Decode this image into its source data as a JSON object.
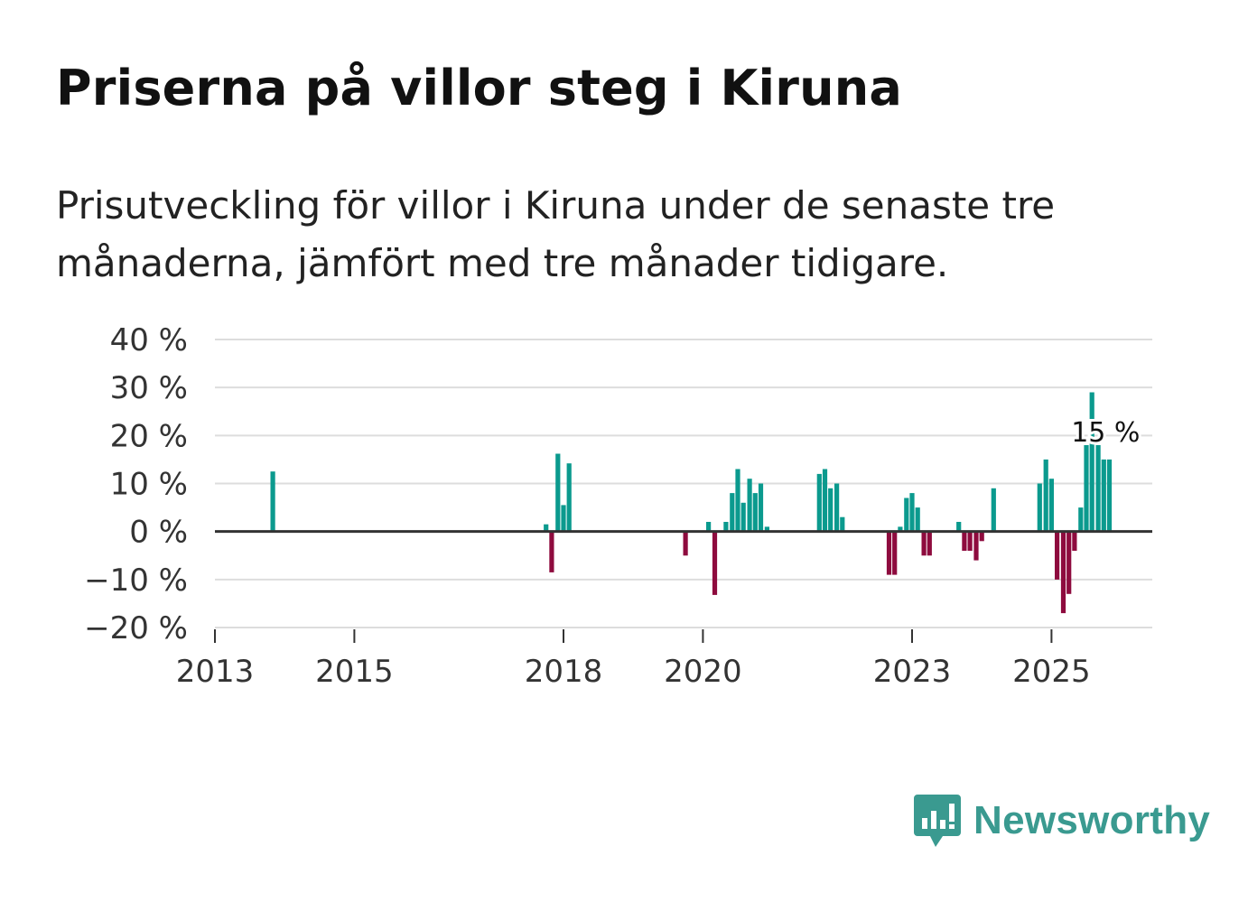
{
  "title": "Priserna på villor steg i Kiruna",
  "subtitle": "Prisutveckling för villor i Kiruna under de senaste tre månaderna, jämfört med tre månader tidigare.",
  "brand": {
    "name": "Newsworthy",
    "icon": "newsworthy-logo-icon",
    "color": "#3a9a90"
  },
  "colors": {
    "positive": "#0b9a8e",
    "negative": "#8e0b3e",
    "grid": "#dddddd",
    "zero": "#333333"
  },
  "chart_data": {
    "type": "bar",
    "title": "Priserna på villor steg i Kiruna",
    "xlabel": "",
    "ylabel": "",
    "ylim": [
      -20,
      40
    ],
    "xlim": [
      2013.0,
      2026.5
    ],
    "y_ticks": [
      40,
      30,
      20,
      10,
      0,
      -10,
      -20
    ],
    "y_tick_labels": [
      "40 %",
      "30 %",
      "20 %",
      "10 %",
      "0 %",
      "−10 %",
      "−20 %"
    ],
    "x_ticks": [
      2013,
      2015,
      2018,
      2020,
      2023,
      2025
    ],
    "x_tick_labels": [
      "2013",
      "2015",
      "2018",
      "2020",
      "2023",
      "2025"
    ],
    "annotation": {
      "text": "15 %",
      "x": 2025.75,
      "value": 15
    },
    "series": [
      {
        "name": "Prisutveckling",
        "x": [
          2013.83,
          2017.75,
          2017.83,
          2017.92,
          2018.0,
          2018.08,
          2019.75,
          2020.08,
          2020.17,
          2020.33,
          2020.42,
          2020.5,
          2020.58,
          2020.67,
          2020.75,
          2020.83,
          2020.92,
          2021.67,
          2021.75,
          2021.83,
          2021.92,
          2022.0,
          2022.67,
          2022.75,
          2022.83,
          2022.92,
          2023.0,
          2023.08,
          2023.17,
          2023.25,
          2023.67,
          2023.75,
          2023.83,
          2023.92,
          2024.0,
          2024.17,
          2024.83,
          2024.92,
          2025.0,
          2025.08,
          2025.17,
          2025.25,
          2025.33,
          2025.42,
          2025.5,
          2025.58,
          2025.67,
          2025.75,
          2025.83
        ],
        "values": [
          12.5,
          1.5,
          -8.5,
          16.2,
          5.5,
          14.2,
          -5.0,
          2.0,
          -13.2,
          2.0,
          8.0,
          13.0,
          6.0,
          11.0,
          8.0,
          10.0,
          1.0,
          12.0,
          13.0,
          9.0,
          10.0,
          3.0,
          -9.0,
          -9.0,
          1.0,
          7.0,
          8.0,
          5.0,
          -5.0,
          -5.0,
          2.0,
          -4.0,
          -4.0,
          -6.0,
          -2.0,
          9.0,
          10.0,
          15.0,
          11.0,
          -10.0,
          -17.0,
          -13.0,
          -4.0,
          5.0,
          18.0,
          29.0,
          18.0,
          15.0,
          15.0
        ]
      }
    ]
  }
}
